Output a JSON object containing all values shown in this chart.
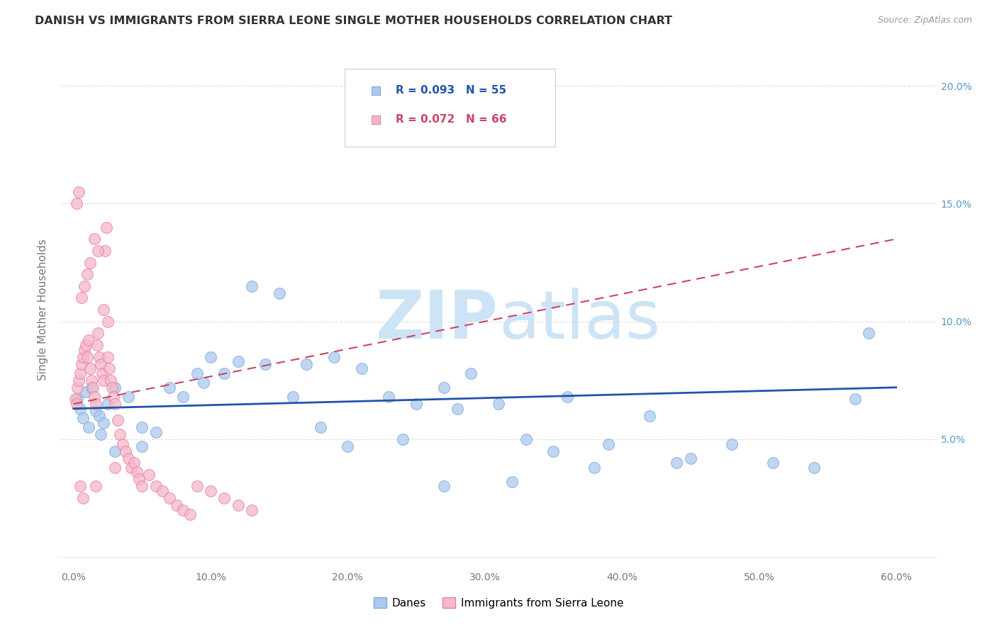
{
  "title": "DANISH VS IMMIGRANTS FROM SIERRA LEONE SINGLE MOTHER HOUSEHOLDS CORRELATION CHART",
  "source": "Source: ZipAtlas.com",
  "danes_R": 0.093,
  "danes_N": 55,
  "sierra_leone_R": 0.072,
  "sierra_leone_N": 66,
  "danes_color": "#adc9ee",
  "danes_edge_color": "#7aaad8",
  "sierra_leone_color": "#f5b8cc",
  "sierra_leone_edge_color": "#e8809c",
  "danes_line_color": "#2255aa",
  "sierra_leone_line_color": "#cc4466",
  "watermark_color": "#cce4f5",
  "background_color": "#ffffff",
  "grid_color": "#dddddd",
  "right_axis_color": "#5599cc",
  "ylabel_color": "#777777",
  "xtick_color": "#777777",
  "danes_x": [
    0.003,
    0.005,
    0.007,
    0.009,
    0.011,
    0.013,
    0.016,
    0.019,
    0.022,
    0.025,
    0.03,
    0.04,
    0.05,
    0.06,
    0.08,
    0.095,
    0.11,
    0.13,
    0.15,
    0.17,
    0.19,
    0.21,
    0.23,
    0.25,
    0.27,
    0.29,
    0.31,
    0.33,
    0.36,
    0.39,
    0.42,
    0.45,
    0.48,
    0.51,
    0.54,
    0.57,
    0.35,
    0.28,
    0.24,
    0.2,
    0.18,
    0.16,
    0.14,
    0.12,
    0.1,
    0.09,
    0.07,
    0.05,
    0.03,
    0.02,
    0.44,
    0.38,
    0.32,
    0.27,
    0.58
  ],
  "danes_y": [
    0.067,
    0.063,
    0.059,
    0.07,
    0.055,
    0.072,
    0.062,
    0.06,
    0.057,
    0.065,
    0.072,
    0.068,
    0.055,
    0.053,
    0.068,
    0.074,
    0.078,
    0.115,
    0.112,
    0.082,
    0.085,
    0.08,
    0.068,
    0.065,
    0.072,
    0.078,
    0.065,
    0.05,
    0.068,
    0.048,
    0.06,
    0.042,
    0.048,
    0.04,
    0.038,
    0.067,
    0.045,
    0.063,
    0.05,
    0.047,
    0.055,
    0.068,
    0.082,
    0.083,
    0.085,
    0.078,
    0.072,
    0.047,
    0.045,
    0.052,
    0.04,
    0.038,
    0.032,
    0.03,
    0.095
  ],
  "sl_x": [
    0.001,
    0.002,
    0.003,
    0.004,
    0.005,
    0.006,
    0.007,
    0.008,
    0.009,
    0.01,
    0.011,
    0.012,
    0.013,
    0.014,
    0.015,
    0.016,
    0.017,
    0.018,
    0.019,
    0.02,
    0.021,
    0.022,
    0.023,
    0.024,
    0.025,
    0.026,
    0.027,
    0.028,
    0.029,
    0.03,
    0.032,
    0.034,
    0.036,
    0.038,
    0.04,
    0.042,
    0.044,
    0.046,
    0.048,
    0.05,
    0.055,
    0.06,
    0.065,
    0.07,
    0.075,
    0.08,
    0.085,
    0.09,
    0.1,
    0.11,
    0.12,
    0.13,
    0.002,
    0.004,
    0.006,
    0.008,
    0.01,
    0.012,
    0.015,
    0.018,
    0.022,
    0.025,
    0.03,
    0.005,
    0.007,
    0.016
  ],
  "sl_y": [
    0.067,
    0.065,
    0.072,
    0.075,
    0.078,
    0.082,
    0.085,
    0.088,
    0.09,
    0.085,
    0.092,
    0.08,
    0.075,
    0.072,
    0.068,
    0.065,
    0.09,
    0.095,
    0.085,
    0.082,
    0.078,
    0.075,
    0.13,
    0.14,
    0.085,
    0.08,
    0.075,
    0.072,
    0.068,
    0.065,
    0.058,
    0.052,
    0.048,
    0.045,
    0.042,
    0.038,
    0.04,
    0.036,
    0.033,
    0.03,
    0.035,
    0.03,
    0.028,
    0.025,
    0.022,
    0.02,
    0.018,
    0.03,
    0.028,
    0.025,
    0.022,
    0.02,
    0.15,
    0.155,
    0.11,
    0.115,
    0.12,
    0.125,
    0.135,
    0.13,
    0.105,
    0.1,
    0.038,
    0.03,
    0.025,
    0.03
  ],
  "danes_trend": [
    0.0,
    0.6,
    0.063,
    0.072
  ],
  "sl_trend": [
    0.0,
    0.6,
    0.065,
    0.135
  ],
  "xlim": [
    -0.01,
    0.63
  ],
  "ylim": [
    -0.005,
    0.215
  ],
  "xticks": [
    0.0,
    0.1,
    0.2,
    0.3,
    0.4,
    0.5,
    0.6
  ],
  "xlabels": [
    "0.0%",
    "10.0%",
    "20.0%",
    "30.0%",
    "40.0%",
    "50.0%",
    "60.0%"
  ],
  "yticks": [
    0.0,
    0.05,
    0.1,
    0.15,
    0.2
  ],
  "ylabels": [
    "",
    "5.0%",
    "10.0%",
    "15.0%",
    "20.0%"
  ]
}
